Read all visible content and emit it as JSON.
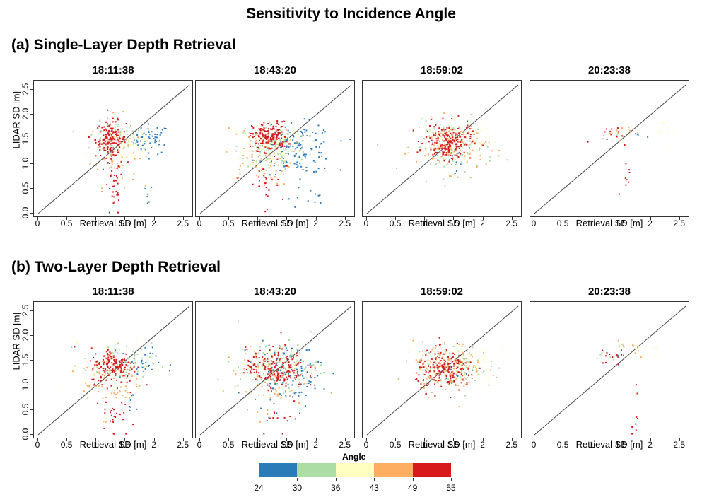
{
  "title": "Sensitivity to Incidence Angle",
  "sections": [
    {
      "label": "(a) Single-Layer Depth Retrieval"
    },
    {
      "label": "(b) Two-Layer Depth Retrieval"
    }
  ],
  "panel_times": [
    "18:11:38",
    "18:43:20",
    "18:59:02",
    "20:23:38"
  ],
  "axes": {
    "xlabel": "Retrieval SD [m]",
    "ylabel": "LIDAR SD [m]",
    "xticks": [
      "0",
      "0.5",
      "1",
      "1.5",
      "2",
      "2.5"
    ],
    "yticks": [
      "0.0",
      "0.5",
      "1.0",
      "1.5",
      "2.0",
      "2.5"
    ]
  },
  "legend": {
    "title": "Angle",
    "ticks": [
      "24",
      "30",
      "36",
      "43",
      "49",
      "55"
    ],
    "colors": [
      "#2b7bb9",
      "#abdda4",
      "#ffffbf",
      "#fdae61",
      "#d7191c"
    ]
  },
  "chart_data": [
    {
      "type": "scatter",
      "section": "(a) Single-Layer Depth Retrieval",
      "title": "18:11:38",
      "xlabel": "Retrieval SD [m]",
      "ylabel": "LIDAR SD [m]",
      "xlim": [
        0,
        2.6
      ],
      "ylim": [
        0,
        2.6
      ],
      "reference_line": "1:1",
      "n_points": 420,
      "clusters": [
        {
          "angle_bin": "49-55",
          "x_center": 1.25,
          "y_center": 1.5,
          "x_spread": 0.13,
          "y_spread": 0.18,
          "n": 140
        },
        {
          "angle_bin": "49-55",
          "x_center": 1.3,
          "y_center": 0.5,
          "x_spread": 0.08,
          "y_spread": 0.35,
          "n": 35
        },
        {
          "angle_bin": "43-49",
          "x_center": 1.3,
          "y_center": 1.25,
          "x_spread": 0.2,
          "y_spread": 0.35,
          "n": 70
        },
        {
          "angle_bin": "36-43",
          "x_center": 1.5,
          "y_center": 1.4,
          "x_spread": 0.3,
          "y_spread": 0.2,
          "n": 55
        },
        {
          "angle_bin": "30-36",
          "x_center": 1.35,
          "y_center": 1.55,
          "x_spread": 0.25,
          "y_spread": 0.15,
          "n": 55
        },
        {
          "angle_bin": "24-30",
          "x_center": 1.95,
          "y_center": 1.5,
          "x_spread": 0.15,
          "y_spread": 0.15,
          "n": 50
        },
        {
          "angle_bin": "24-30",
          "x_center": 1.9,
          "y_center": 0.35,
          "x_spread": 0.03,
          "y_spread": 0.12,
          "n": 6
        }
      ]
    },
    {
      "type": "scatter",
      "section": "(a) Single-Layer Depth Retrieval",
      "title": "18:43:20",
      "xlabel": "Retrieval SD [m]",
      "ylabel": "LIDAR SD [m]",
      "xlim": [
        0,
        2.6
      ],
      "ylim": [
        0,
        2.6
      ],
      "reference_line": "1:1",
      "n_points": 600,
      "clusters": [
        {
          "angle_bin": "49-55",
          "x_center": 1.2,
          "y_center": 1.55,
          "x_spread": 0.15,
          "y_spread": 0.15,
          "n": 160
        },
        {
          "angle_bin": "49-55",
          "x_center": 1.1,
          "y_center": 0.6,
          "x_spread": 0.15,
          "y_spread": 0.3,
          "n": 25
        },
        {
          "angle_bin": "43-49",
          "x_center": 1.0,
          "y_center": 1.15,
          "x_spread": 0.3,
          "y_spread": 0.3,
          "n": 80
        },
        {
          "angle_bin": "36-43",
          "x_center": 1.3,
          "y_center": 1.4,
          "x_spread": 0.25,
          "y_spread": 0.25,
          "n": 70
        },
        {
          "angle_bin": "30-36",
          "x_center": 1.25,
          "y_center": 1.35,
          "x_spread": 0.3,
          "y_spread": 0.25,
          "n": 100
        },
        {
          "angle_bin": "24-30",
          "x_center": 1.7,
          "y_center": 1.3,
          "x_spread": 0.3,
          "y_spread": 0.25,
          "n": 130
        },
        {
          "angle_bin": "24-30",
          "x_center": 1.8,
          "y_center": 0.3,
          "x_spread": 0.2,
          "y_spread": 0.15,
          "n": 10
        }
      ]
    },
    {
      "type": "scatter",
      "section": "(a) Single-Layer Depth Retrieval",
      "title": "18:59:02",
      "xlabel": "Retrieval SD [m]",
      "ylabel": "LIDAR SD [m]",
      "xlim": [
        0,
        2.6
      ],
      "ylim": [
        0,
        2.6
      ],
      "reference_line": "1:1",
      "n_points": 520,
      "clusters": [
        {
          "angle_bin": "49-55",
          "x_center": 1.4,
          "y_center": 1.45,
          "x_spread": 0.2,
          "y_spread": 0.18,
          "n": 170
        },
        {
          "angle_bin": "43-49",
          "x_center": 1.45,
          "y_center": 1.35,
          "x_spread": 0.3,
          "y_spread": 0.25,
          "n": 120
        },
        {
          "angle_bin": "36-43",
          "x_center": 1.6,
          "y_center": 1.45,
          "x_spread": 0.3,
          "y_spread": 0.2,
          "n": 70
        },
        {
          "angle_bin": "30-36",
          "x_center": 1.5,
          "y_center": 1.35,
          "x_spread": 0.35,
          "y_spread": 0.25,
          "n": 90
        },
        {
          "angle_bin": "24-30",
          "x_center": 1.5,
          "y_center": 1.1,
          "x_spread": 0.12,
          "y_spread": 0.12,
          "n": 12
        }
      ]
    },
    {
      "type": "scatter",
      "section": "(a) Single-Layer Depth Retrieval",
      "title": "20:23:38",
      "xlabel": "Retrieval SD [m]",
      "ylabel": "LIDAR SD [m]",
      "xlim": [
        0,
        2.6
      ],
      "ylim": [
        0,
        2.6
      ],
      "reference_line": "1:1",
      "n_points": 55,
      "clusters": [
        {
          "angle_bin": "49-55",
          "x_center": 1.3,
          "y_center": 1.6,
          "x_spread": 0.15,
          "y_spread": 0.1,
          "n": 12
        },
        {
          "angle_bin": "49-55",
          "x_center": 1.55,
          "y_center": 0.4,
          "x_spread": 0.04,
          "y_spread": 0.4,
          "n": 8
        },
        {
          "angle_bin": "43-49",
          "x_center": 1.45,
          "y_center": 1.7,
          "x_spread": 0.15,
          "y_spread": 0.1,
          "n": 10
        },
        {
          "angle_bin": "36-43",
          "x_center": 2.3,
          "y_center": 1.6,
          "x_spread": 0.2,
          "y_spread": 0.15,
          "n": 8
        },
        {
          "angle_bin": "30-36",
          "x_center": 1.3,
          "y_center": 1.6,
          "x_spread": 0.15,
          "y_spread": 0.1,
          "n": 8
        },
        {
          "angle_bin": "24-30",
          "x_center": 1.9,
          "y_center": 1.6,
          "x_spread": 0.1,
          "y_spread": 0.05,
          "n": 4
        }
      ]
    },
    {
      "type": "scatter",
      "section": "(b) Two-Layer Depth Retrieval",
      "title": "18:11:38",
      "xlabel": "Retrieval SD [m]",
      "ylabel": "LIDAR SD [m]",
      "xlim": [
        0,
        2.6
      ],
      "ylim": [
        0,
        2.6
      ],
      "reference_line": "1:1",
      "n_points": 420,
      "clusters": [
        {
          "angle_bin": "49-55",
          "x_center": 1.3,
          "y_center": 1.4,
          "x_spread": 0.2,
          "y_spread": 0.18,
          "n": 140
        },
        {
          "angle_bin": "49-55",
          "x_center": 1.3,
          "y_center": 0.5,
          "x_spread": 0.12,
          "y_spread": 0.35,
          "n": 30
        },
        {
          "angle_bin": "43-49",
          "x_center": 1.25,
          "y_center": 1.1,
          "x_spread": 0.25,
          "y_spread": 0.35,
          "n": 70
        },
        {
          "angle_bin": "36-43",
          "x_center": 1.4,
          "y_center": 1.4,
          "x_spread": 0.3,
          "y_spread": 0.25,
          "n": 50
        },
        {
          "angle_bin": "30-36",
          "x_center": 1.35,
          "y_center": 1.45,
          "x_spread": 0.3,
          "y_spread": 0.2,
          "n": 55
        },
        {
          "angle_bin": "24-30",
          "x_center": 1.7,
          "y_center": 1.45,
          "x_spread": 0.2,
          "y_spread": 0.15,
          "n": 35
        },
        {
          "angle_bin": "24-30",
          "x_center": 1.6,
          "y_center": 0.45,
          "x_spread": 0.05,
          "y_spread": 0.2,
          "n": 6
        }
      ]
    },
    {
      "type": "scatter",
      "section": "(b) Two-Layer Depth Retrieval",
      "title": "18:43:20",
      "xlabel": "Retrieval SD [m]",
      "ylabel": "LIDAR SD [m]",
      "xlim": [
        0,
        2.6
      ],
      "ylim": [
        0,
        2.6
      ],
      "reference_line": "1:1",
      "n_points": 600,
      "clusters": [
        {
          "angle_bin": "49-55",
          "x_center": 1.3,
          "y_center": 1.35,
          "x_spread": 0.25,
          "y_spread": 0.2,
          "n": 170
        },
        {
          "angle_bin": "43-49",
          "x_center": 1.1,
          "y_center": 1.15,
          "x_spread": 0.35,
          "y_spread": 0.3,
          "n": 80
        },
        {
          "angle_bin": "36-43",
          "x_center": 1.35,
          "y_center": 1.4,
          "x_spread": 0.3,
          "y_spread": 0.25,
          "n": 70
        },
        {
          "angle_bin": "30-36",
          "x_center": 1.35,
          "y_center": 1.4,
          "x_spread": 0.35,
          "y_spread": 0.25,
          "n": 100
        },
        {
          "angle_bin": "24-30",
          "x_center": 1.5,
          "y_center": 1.25,
          "x_spread": 0.3,
          "y_spread": 0.3,
          "n": 130
        },
        {
          "angle_bin": "49-55",
          "x_center": 1.4,
          "y_center": 0.35,
          "x_spread": 0.2,
          "y_spread": 0.2,
          "n": 15
        }
      ]
    },
    {
      "type": "scatter",
      "section": "(b) Two-Layer Depth Retrieval",
      "title": "18:59:02",
      "xlabel": "Retrieval SD [m]",
      "ylabel": "LIDAR SD [m]",
      "xlim": [
        0,
        2.6
      ],
      "ylim": [
        0,
        2.6
      ],
      "reference_line": "1:1",
      "n_points": 520,
      "clusters": [
        {
          "angle_bin": "49-55",
          "x_center": 1.35,
          "y_center": 1.3,
          "x_spread": 0.25,
          "y_spread": 0.2,
          "n": 170
        },
        {
          "angle_bin": "43-49",
          "x_center": 1.4,
          "y_center": 1.35,
          "x_spread": 0.3,
          "y_spread": 0.25,
          "n": 120
        },
        {
          "angle_bin": "36-43",
          "x_center": 1.6,
          "y_center": 1.5,
          "x_spread": 0.3,
          "y_spread": 0.2,
          "n": 70
        },
        {
          "angle_bin": "30-36",
          "x_center": 1.5,
          "y_center": 1.4,
          "x_spread": 0.3,
          "y_spread": 0.2,
          "n": 90
        },
        {
          "angle_bin": "24-30",
          "x_center": 1.55,
          "y_center": 1.3,
          "x_spread": 0.15,
          "y_spread": 0.15,
          "n": 12
        }
      ]
    },
    {
      "type": "scatter",
      "section": "(b) Two-Layer Depth Retrieval",
      "title": "20:23:38",
      "xlabel": "Retrieval SD [m]",
      "ylabel": "LIDAR SD [m]",
      "xlim": [
        0,
        2.6
      ],
      "ylim": [
        0,
        2.6
      ],
      "reference_line": "1:1",
      "n_points": 50,
      "clusters": [
        {
          "angle_bin": "49-55",
          "x_center": 1.35,
          "y_center": 1.6,
          "x_spread": 0.12,
          "y_spread": 0.1,
          "n": 12
        },
        {
          "angle_bin": "49-55",
          "x_center": 1.72,
          "y_center": 0.45,
          "x_spread": 0.05,
          "y_spread": 0.4,
          "n": 8
        },
        {
          "angle_bin": "43-49",
          "x_center": 1.65,
          "y_center": 1.75,
          "x_spread": 0.12,
          "y_spread": 0.12,
          "n": 10
        },
        {
          "angle_bin": "36-43",
          "x_center": 1.75,
          "y_center": 1.7,
          "x_spread": 0.15,
          "y_spread": 0.15,
          "n": 8
        },
        {
          "angle_bin": "30-36",
          "x_center": 1.3,
          "y_center": 1.6,
          "x_spread": 0.15,
          "y_spread": 0.1,
          "n": 6
        },
        {
          "angle_bin": "24-30",
          "x_center": 1.5,
          "y_center": 1.55,
          "x_spread": 0.1,
          "y_spread": 0.05,
          "n": 3
        }
      ]
    }
  ]
}
